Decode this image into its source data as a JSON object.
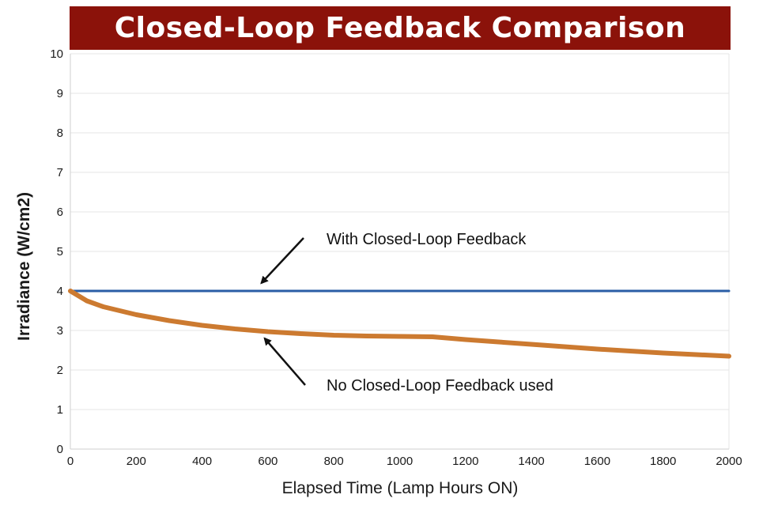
{
  "chart_data": {
    "type": "line",
    "title": "Closed-Loop Feedback Comparison",
    "xlabel": "Elapsed Time (Lamp Hours ON)",
    "ylabel": "Irradiance (W/cm2)",
    "xlim": [
      0,
      2000
    ],
    "ylim": [
      0,
      10
    ],
    "xticks": [
      0,
      200,
      400,
      600,
      800,
      1000,
      1200,
      1400,
      1600,
      1800,
      2000
    ],
    "yticks": [
      0,
      1,
      2,
      3,
      4,
      5,
      6,
      7,
      8,
      9,
      10
    ],
    "grid": true,
    "legend": "none",
    "series": [
      {
        "name": "With Closed-Loop Feedback",
        "color": "#2a5ea6",
        "x": [
          0,
          2000
        ],
        "y": [
          4.0,
          4.0
        ]
      },
      {
        "name": "No Closed-Loop Feedback used",
        "color": "#cc7a30",
        "x": [
          0,
          50,
          100,
          200,
          300,
          400,
          500,
          600,
          700,
          800,
          900,
          1000,
          1100,
          1200,
          1300,
          1400,
          1500,
          1600,
          1700,
          1800,
          1900,
          2000
        ],
        "y": [
          4.0,
          3.75,
          3.6,
          3.4,
          3.25,
          3.13,
          3.04,
          2.97,
          2.92,
          2.88,
          2.86,
          2.85,
          2.84,
          2.77,
          2.71,
          2.65,
          2.59,
          2.53,
          2.48,
          2.43,
          2.39,
          2.35
        ]
      }
    ],
    "annotations": [
      {
        "text": "With Closed-Loop Feedback",
        "series": 0,
        "point": [
          580,
          4.2
        ]
      },
      {
        "text": "No Closed-Loop Feedback used",
        "series": 1,
        "point": [
          590,
          2.8
        ]
      }
    ]
  }
}
